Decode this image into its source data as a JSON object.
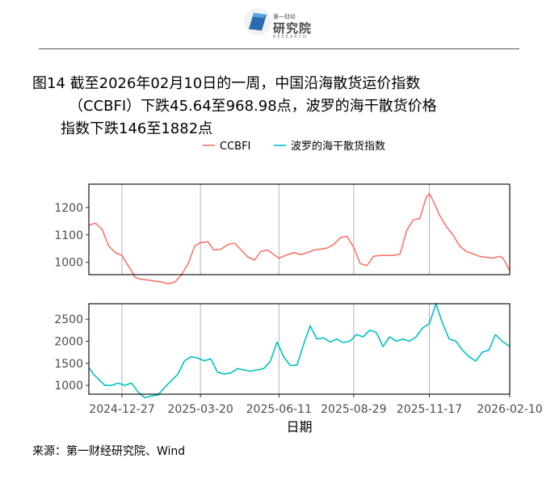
{
  "header": {
    "logo_cn_small": "第一财经",
    "logo_cn": "研究院",
    "logo_en": "RESEARCH"
  },
  "title": {
    "line1": "图14  截至2026年02月10日的一周，中国沿海散货运价指数",
    "line2": "（CCBFI）下跌45.64至968.98点，波罗的海干散货价格",
    "line3": "指数下跌146至1882点"
  },
  "source": "来源：第一财经研究院、Wind",
  "colors": {
    "ccbfi": "#F8766D",
    "bdi": "#00BFC4",
    "grid": "#b3b3b3",
    "frame": "#000000"
  },
  "chart_data": {
    "type": "line",
    "xlabel": "日期",
    "x_ticks": [
      "2024-12-27",
      "2025-03-20",
      "2025-06-11",
      "2025-08-29",
      "2025-11-17",
      "2026-02-10"
    ],
    "x_range": [
      "2024-11-22",
      "2026-02-10"
    ],
    "legend": {
      "position": "top",
      "entries": [
        "CCBFI",
        "波罗的海干散货指数"
      ]
    },
    "panels": [
      {
        "name": "CCBFI",
        "ylim": [
          955,
          1285
        ],
        "y_ticks": [
          1000,
          1100,
          1200
        ],
        "series": [
          {
            "name": "CCBFI",
            "x": [
              "2024-11-22",
              "2024-11-29",
              "2024-12-06",
              "2024-12-13",
              "2024-12-20",
              "2024-12-27",
              "2025-01-03",
              "2025-01-10",
              "2025-01-17",
              "2025-01-24",
              "2025-02-07",
              "2025-02-14",
              "2025-02-21",
              "2025-02-28",
              "2025-03-07",
              "2025-03-14",
              "2025-03-20",
              "2025-03-28",
              "2025-04-03",
              "2025-04-11",
              "2025-04-18",
              "2025-04-25",
              "2025-05-09",
              "2025-05-16",
              "2025-05-23",
              "2025-05-30",
              "2025-06-11",
              "2025-06-20",
              "2025-06-27",
              "2025-07-04",
              "2025-07-11",
              "2025-07-18",
              "2025-07-25",
              "2025-08-01",
              "2025-08-08",
              "2025-08-15",
              "2025-08-22",
              "2025-08-29",
              "2025-09-05",
              "2025-09-12",
              "2025-09-19",
              "2025-09-26",
              "2025-10-10",
              "2025-10-17",
              "2025-10-24",
              "2025-10-31",
              "2025-11-07",
              "2025-11-14",
              "2025-11-17",
              "2025-11-21",
              "2025-11-28",
              "2025-12-05",
              "2025-12-12",
              "2025-12-19",
              "2025-12-26",
              "2026-01-09",
              "2026-01-16",
              "2026-01-23",
              "2026-01-30",
              "2026-02-03",
              "2026-02-10"
            ],
            "y": [
              1135,
              1143,
              1120,
              1060,
              1035,
              1025,
              985,
              945,
              938,
              935,
              928,
              922,
              928,
              955,
              995,
              1060,
              1072,
              1075,
              1045,
              1048,
              1065,
              1070,
              1020,
              1008,
              1040,
              1045,
              1015,
              1028,
              1035,
              1028,
              1035,
              1045,
              1048,
              1052,
              1065,
              1090,
              1095,
              1055,
              995,
              988,
              1022,
              1025,
              1025,
              1030,
              1115,
              1155,
              1160,
              1240,
              1250,
              1225,
              1170,
              1130,
              1100,
              1060,
              1040,
              1022,
              1018,
              1015,
              1022,
              1015,
              969
            ]
          }
        ]
      },
      {
        "name": "波罗的海干散货指数",
        "ylim": [
          800,
          2850
        ],
        "y_ticks": [
          1000,
          1500,
          2000,
          2500
        ],
        "series": [
          {
            "name": "波罗的海干散货指数",
            "x": [
              "2024-11-22",
              "2024-11-27",
              "2024-12-02",
              "2024-12-09",
              "2024-12-16",
              "2024-12-23",
              "2024-12-30",
              "2025-01-06",
              "2025-01-13",
              "2025-01-20",
              "2025-01-27",
              "2025-02-03",
              "2025-02-10",
              "2025-02-17",
              "2025-02-24",
              "2025-03-03",
              "2025-03-10",
              "2025-03-17",
              "2025-03-24",
              "2025-03-31",
              "2025-04-07",
              "2025-04-14",
              "2025-04-21",
              "2025-04-28",
              "2025-05-05",
              "2025-05-12",
              "2025-05-19",
              "2025-05-26",
              "2025-06-02",
              "2025-06-09",
              "2025-06-16",
              "2025-06-23",
              "2025-06-30",
              "2025-07-07",
              "2025-07-14",
              "2025-07-21",
              "2025-07-28",
              "2025-08-04",
              "2025-08-11",
              "2025-08-18",
              "2025-08-25",
              "2025-09-01",
              "2025-09-08",
              "2025-09-15",
              "2025-09-22",
              "2025-09-29",
              "2025-10-06",
              "2025-10-13",
              "2025-10-20",
              "2025-10-27",
              "2025-11-03",
              "2025-11-10",
              "2025-11-17",
              "2025-11-24",
              "2025-12-01",
              "2025-12-08",
              "2025-12-15",
              "2025-12-22",
              "2025-12-29",
              "2026-01-05",
              "2026-01-12",
              "2026-01-19",
              "2026-01-26",
              "2026-02-02",
              "2026-02-10"
            ],
            "y": [
              1400,
              1250,
              1150,
              1000,
              1000,
              1050,
              1000,
              1050,
              850,
              720,
              760,
              780,
              950,
              1100,
              1250,
              1550,
              1650,
              1620,
              1560,
              1600,
              1300,
              1260,
              1280,
              1380,
              1350,
              1320,
              1350,
              1380,
              1550,
              1980,
              1650,
              1450,
              1460,
              1920,
              2350,
              2050,
              2080,
              1980,
              2050,
              1970,
              2000,
              2150,
              2100,
              2250,
              2200,
              1880,
              2100,
              2000,
              2050,
              2000,
              2100,
              2300,
              2400,
              2850,
              2400,
              2050,
              2000,
              1800,
              1650,
              1550,
              1750,
              1800,
              2150,
              2000,
              1882
            ]
          }
        ]
      }
    ]
  }
}
